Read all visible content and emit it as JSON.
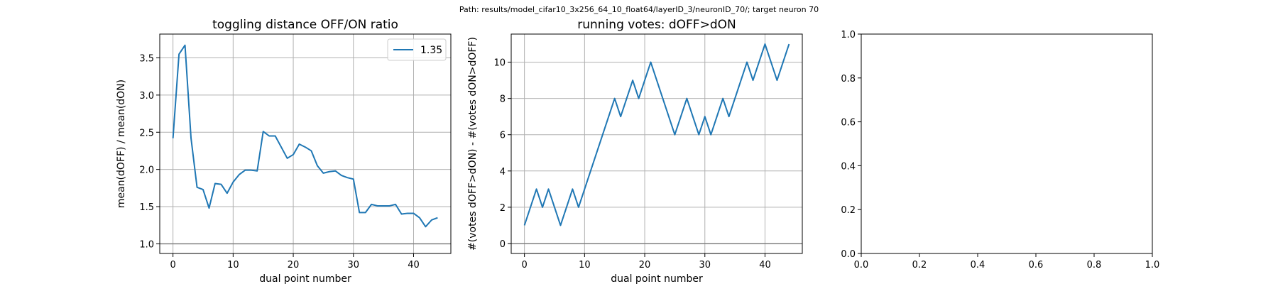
{
  "figure": {
    "suptitle": "Path: results/model_cifar10_3x256_64_10_float64/layerID_3/neuronID_70/; target neuron 70"
  },
  "colors": {
    "series": "#1f77b4",
    "grid": "#b0b0b0",
    "refline": "#808080",
    "axes": "#000000"
  },
  "chart_data": [
    {
      "type": "line",
      "title": "toggling distance OFF/ON ratio",
      "xlabel": "dual point number",
      "ylabel": "mean(dOFF) / mean(dON)",
      "xlim": [
        -2.2,
        46.2
      ],
      "ylim": [
        0.87,
        3.82
      ],
      "xticks": [
        0,
        10,
        20,
        30,
        40
      ],
      "yticks": [
        1.0,
        1.5,
        2.0,
        2.5,
        3.0,
        3.5
      ],
      "ytick_labels": [
        "1.0",
        "1.5",
        "2.0",
        "2.5",
        "3.0",
        "3.5"
      ],
      "grid": true,
      "hline": 1.0,
      "legend": {
        "position": "upper right",
        "entries": [
          "1.35"
        ]
      },
      "series": [
        {
          "name": "1.35",
          "x": [
            0,
            1,
            2,
            3,
            4,
            5,
            6,
            7,
            8,
            9,
            10,
            11,
            12,
            13,
            14,
            15,
            16,
            17,
            18,
            19,
            20,
            21,
            22,
            23,
            24,
            25,
            26,
            27,
            28,
            29,
            30,
            31,
            32,
            33,
            34,
            35,
            36,
            37,
            38,
            39,
            40,
            41,
            42,
            43,
            44
          ],
          "y": [
            2.42,
            3.55,
            3.67,
            2.42,
            1.76,
            1.73,
            1.48,
            1.81,
            1.8,
            1.68,
            1.83,
            1.93,
            1.99,
            1.99,
            1.98,
            2.51,
            2.45,
            2.45,
            2.3,
            2.15,
            2.2,
            2.34,
            2.3,
            2.25,
            2.05,
            1.95,
            1.97,
            1.98,
            1.92,
            1.89,
            1.87,
            1.42,
            1.42,
            1.53,
            1.51,
            1.51,
            1.51,
            1.53,
            1.4,
            1.41,
            1.41,
            1.35,
            1.23,
            1.32,
            1.35
          ]
        }
      ]
    },
    {
      "type": "line",
      "title": "running votes: dOFF>dON",
      "xlabel": "dual point number",
      "ylabel": "#(votes dOFF>dON) - #(votes dON>dOFF)",
      "xlim": [
        -2.2,
        46.2
      ],
      "ylim": [
        -0.55,
        11.55
      ],
      "xticks": [
        0,
        10,
        20,
        30,
        40
      ],
      "yticks": [
        0,
        2,
        4,
        6,
        8,
        10
      ],
      "ytick_labels": [
        "0",
        "2",
        "4",
        "6",
        "8",
        "10"
      ],
      "grid": true,
      "hline": 0,
      "series": [
        {
          "x": [
            0,
            2,
            3,
            4,
            6,
            8,
            9,
            15,
            16,
            18,
            19,
            21,
            25,
            27,
            29,
            30,
            31,
            33,
            34,
            37,
            38,
            40,
            42,
            44
          ],
          "y": [
            1,
            3,
            2,
            3,
            1,
            3,
            2,
            8,
            7,
            9,
            8,
            10,
            6,
            8,
            6,
            7,
            6,
            8,
            7,
            10,
            9,
            11,
            9,
            11
          ]
        }
      ]
    },
    {
      "type": "line",
      "title": "",
      "xlabel": "",
      "ylabel": "",
      "xlim": [
        0,
        1
      ],
      "ylim": [
        0,
        1
      ],
      "xticks": [
        0.0,
        0.2,
        0.4,
        0.6,
        0.8,
        1.0
      ],
      "xtick_labels": [
        "0.0",
        "0.2",
        "0.4",
        "0.6",
        "0.8",
        "1.0"
      ],
      "yticks": [
        0.0,
        0.2,
        0.4,
        0.6,
        0.8,
        1.0
      ],
      "ytick_labels": [
        "0.0",
        "0.2",
        "0.4",
        "0.6",
        "0.8",
        "1.0"
      ],
      "grid": false,
      "series": []
    }
  ]
}
